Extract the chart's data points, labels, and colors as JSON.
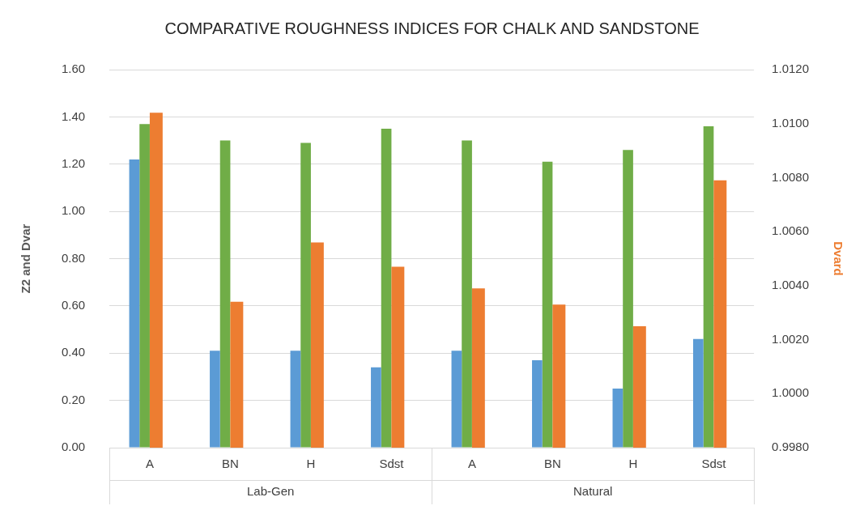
{
  "chart_data": {
    "type": "bar",
    "title": "COMPARATIVE ROUGHNESS INDICES FOR CHALK AND SANDSTONE",
    "ylabel": "Z2 and Dvar",
    "y2label": "Dvard",
    "categories": [
      "A",
      "BN",
      "H",
      "Sdst",
      "A",
      "BN",
      "H",
      "Sdst"
    ],
    "annotations": [
      "Lab-Gen",
      "Natural"
    ],
    "series": [
      {
        "color": "#5b9bd5",
        "values": [
          1.22,
          0.41,
          0.41,
          0.34,
          0.41,
          0.37,
          0.25,
          0.46
        ]
      },
      {
        "color": "#ed7d31",
        "axis": "y2",
        "values": [
          1.0104,
          1.0034,
          1.0056,
          1.0047,
          1.0039,
          1.0033,
          1.0025,
          1.0079
        ]
      },
      {
        "color": "#70ad47",
        "values": [
          1.37,
          1.3,
          1.29,
          1.35,
          1.3,
          1.21,
          1.26,
          1.36
        ]
      }
    ],
    "ylim": [
      0,
      1.6
    ],
    "yticks": [
      {
        "value": 0,
        "label": "0.00"
      },
      {
        "value": 0.2,
        "label": "0.20"
      },
      {
        "value": 0.4,
        "label": "0.40"
      },
      {
        "value": 0.6,
        "label": "0.60"
      },
      {
        "value": 0.8,
        "label": "0.80"
      },
      {
        "value": 1.0,
        "label": "1.00"
      },
      {
        "value": 1.2,
        "label": "1.20"
      },
      {
        "value": 1.4,
        "label": "1.40"
      },
      {
        "value": 1.6,
        "label": "1.60"
      }
    ],
    "y2lim": [
      0.998,
      1.012
    ],
    "y2ticks": [
      {
        "value": 0.998,
        "label": "0.9980"
      },
      {
        "value": 1.0,
        "label": "1.0000"
      },
      {
        "value": 1.002,
        "label": "1.0020"
      },
      {
        "value": 1.004,
        "label": "1.0040"
      },
      {
        "value": 1.006,
        "label": "1.0060"
      },
      {
        "value": 1.008,
        "label": "1.0080"
      },
      {
        "value": 1.01,
        "label": "1.0100"
      },
      {
        "value": 1.012,
        "label": "1.0120"
      }
    ],
    "grid": "y"
  }
}
